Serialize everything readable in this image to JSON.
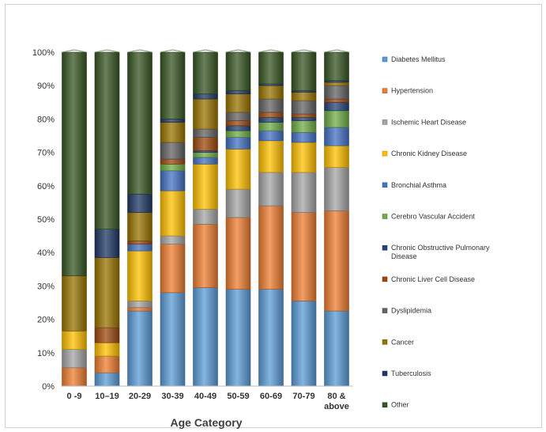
{
  "chart_data": {
    "type": "bar",
    "stacked": true,
    "percent_stacked": true,
    "title": "",
    "xlabel": "Age Category",
    "ylabel": "",
    "ylim": [
      0,
      100
    ],
    "yticks": [
      "0%",
      "10%",
      "20%",
      "30%",
      "40%",
      "50%",
      "60%",
      "70%",
      "80%",
      "90%",
      "100%"
    ],
    "grid": false,
    "legend_position": "right",
    "categories": [
      "0 -9",
      "10–19",
      "20-29",
      "30-39",
      "40-49",
      "50-59",
      "60-69",
      "70-79",
      "80 &\nabove"
    ],
    "series": [
      {
        "name": "Diabetes Mellitus",
        "color": "#5B9BD5",
        "values": [
          0,
          4,
          22.5,
          28,
          29.5,
          29,
          29,
          25.5,
          22.5
        ]
      },
      {
        "name": "Hypertension",
        "color": "#ED7D31",
        "values": [
          5.5,
          5,
          1,
          14.5,
          19,
          21.5,
          25,
          26.5,
          30
        ]
      },
      {
        "name": "Ischemic Heart Disease",
        "color": "#A5A5A5",
        "values": [
          5.5,
          0,
          2,
          2.5,
          4.5,
          8.5,
          10,
          12,
          13
        ]
      },
      {
        "name": "Chronic Kidney Disease",
        "color": "#FFC000",
        "values": [
          5.5,
          4,
          15,
          13.5,
          13.5,
          12,
          9.5,
          9,
          6.5
        ]
      },
      {
        "name": "Bronchial Asthma",
        "color": "#4472C4",
        "values": [
          0,
          0,
          2,
          6,
          2,
          3.5,
          3,
          3,
          5.5
        ]
      },
      {
        "name": "Cerebro Vascular Accident",
        "color": "#70AD47",
        "values": [
          0,
          0,
          0,
          2,
          1.5,
          2,
          2.5,
          3.5,
          5
        ]
      },
      {
        "name": "Chronic Obstructive Pulmonary Disease",
        "color": "#264478",
        "values": [
          0,
          0,
          0,
          0,
          0.5,
          1.5,
          1.5,
          1,
          2.5
        ]
      },
      {
        "name": "Chronic Liver Cell Disease",
        "color": "#9E480E",
        "values": [
          0,
          4.5,
          1,
          1.5,
          4,
          1.5,
          1.5,
          1,
          1
        ]
      },
      {
        "name": "Dyslipidemia",
        "color": "#636363",
        "values": [
          0,
          0,
          0,
          5,
          2.5,
          2.5,
          4,
          4,
          4
        ]
      },
      {
        "name": "Cancer",
        "color": "#997300",
        "values": [
          16.5,
          21,
          8.5,
          6,
          9,
          5.5,
          4,
          2.5,
          1
        ]
      },
      {
        "name": "Tuberculosis",
        "color": "#1F3864",
        "values": [
          0,
          8.5,
          5.5,
          1,
          1.5,
          1,
          0.5,
          0.5,
          0.5
        ]
      },
      {
        "name": "Other",
        "color": "#375623",
        "values": [
          67,
          53,
          42.5,
          20,
          12.5,
          11.5,
          9.5,
          11.5,
          8.5
        ]
      }
    ]
  }
}
